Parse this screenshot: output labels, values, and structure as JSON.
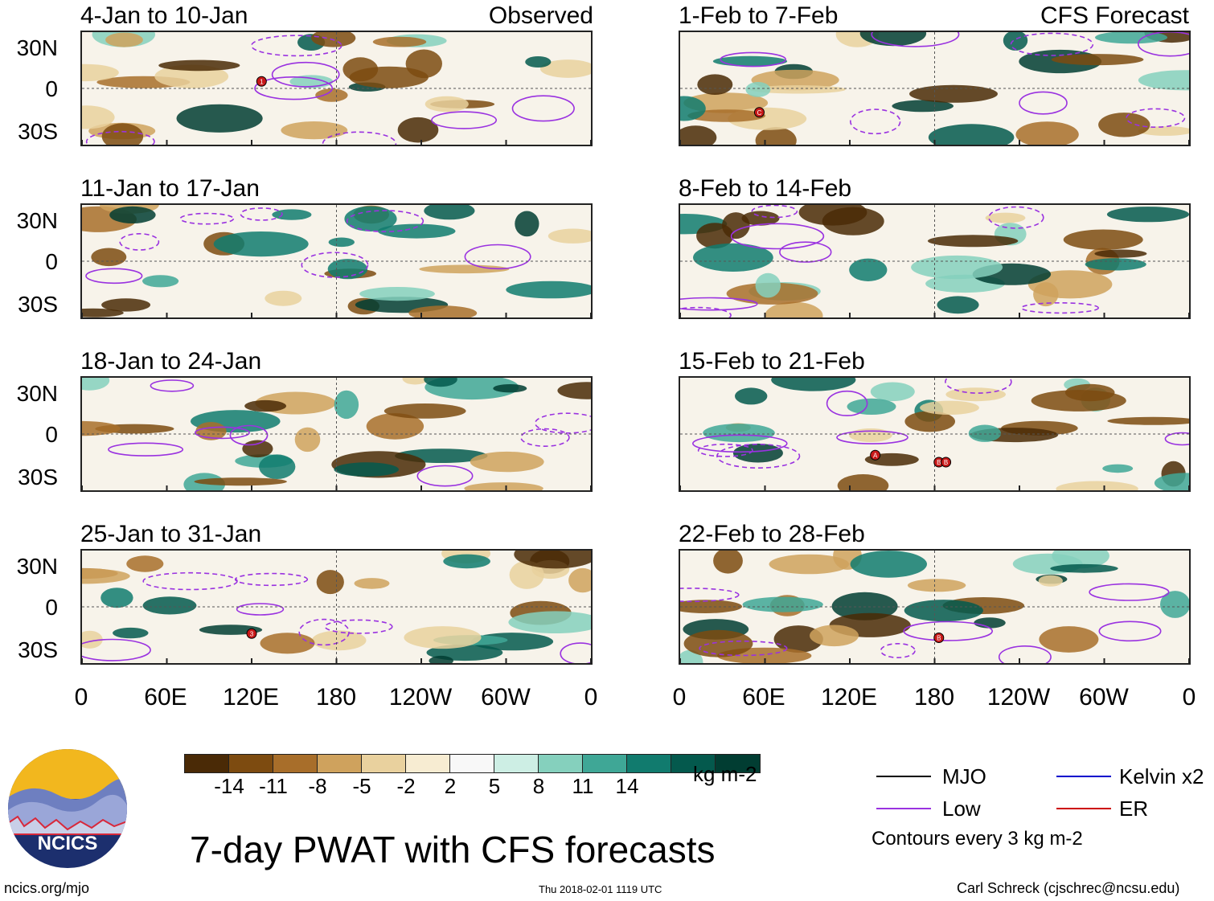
{
  "panels": [
    {
      "title": "4-Jan to 10-Jan",
      "tag": "Observed",
      "markers": [
        {
          "lon": 127,
          "lat": 5,
          "label": "1"
        }
      ]
    },
    {
      "title": "11-Jan to 17-Jan",
      "tag": "",
      "markers": []
    },
    {
      "title": "18-Jan to 24-Jan",
      "tag": "",
      "markers": []
    },
    {
      "title": "25-Jan to 31-Jan",
      "tag": "",
      "markers": [
        {
          "lon": 120,
          "lat": -19,
          "label": "3"
        }
      ]
    },
    {
      "title": "1-Feb to 7-Feb",
      "tag": "CFS Forecast",
      "markers": [
        {
          "lon": 56,
          "lat": -17,
          "label": "C"
        }
      ]
    },
    {
      "title": "8-Feb to 14-Feb",
      "tag": "",
      "markers": []
    },
    {
      "title": "15-Feb to 21-Feb",
      "tag": "",
      "markers": [
        {
          "lon": 138,
          "lat": -15,
          "label": "A"
        },
        {
          "lon": 183,
          "lat": -20,
          "label": "B"
        },
        {
          "lon": 188,
          "lat": -20,
          "label": "B"
        }
      ]
    },
    {
      "title": "22-Feb to 28-Feb",
      "tag": "",
      "markers": [
        {
          "lon": 183,
          "lat": -22,
          "label": "B"
        }
      ]
    }
  ],
  "axes": {
    "y_labels": [
      "30N",
      "0",
      "30S"
    ],
    "x_labels": [
      "0",
      "60E",
      "120E",
      "180",
      "120W",
      "60W",
      "0"
    ]
  },
  "colorbar": {
    "colors": [
      "#4a2a06",
      "#7d4b10",
      "#a86e2a",
      "#cfa25d",
      "#e9d19e",
      "#f7ecd2",
      "#f8f8f8",
      "#cdeee4",
      "#85d0bd",
      "#3fa796",
      "#117b6e",
      "#04594d",
      "#013d32"
    ],
    "labels": [
      "-14",
      "-11",
      "-8",
      "-5",
      "-2",
      "2",
      "5",
      "8",
      "11",
      "14"
    ],
    "units": "kg m-2"
  },
  "title": "7-day PWAT with CFS forecasts",
  "legend": {
    "items": [
      {
        "label": "MJO",
        "color": "#000000"
      },
      {
        "label": "Kelvin x2",
        "color": "#0000cc"
      },
      {
        "label": "Low",
        "color": "#9a32e0"
      },
      {
        "label": "ER",
        "color": "#cc0000"
      }
    ],
    "note": "Contours every 3 kg m-2"
  },
  "footer": {
    "left": "ncics.org/mjo",
    "center": "Thu 2018-02-01 1119 UTC",
    "right": "Carl Schreck (cjschrec@ncsu.edu)"
  },
  "logo": {
    "text": "NCICS",
    "sky": "#f2b71e",
    "bg": "#1c2f6e"
  }
}
